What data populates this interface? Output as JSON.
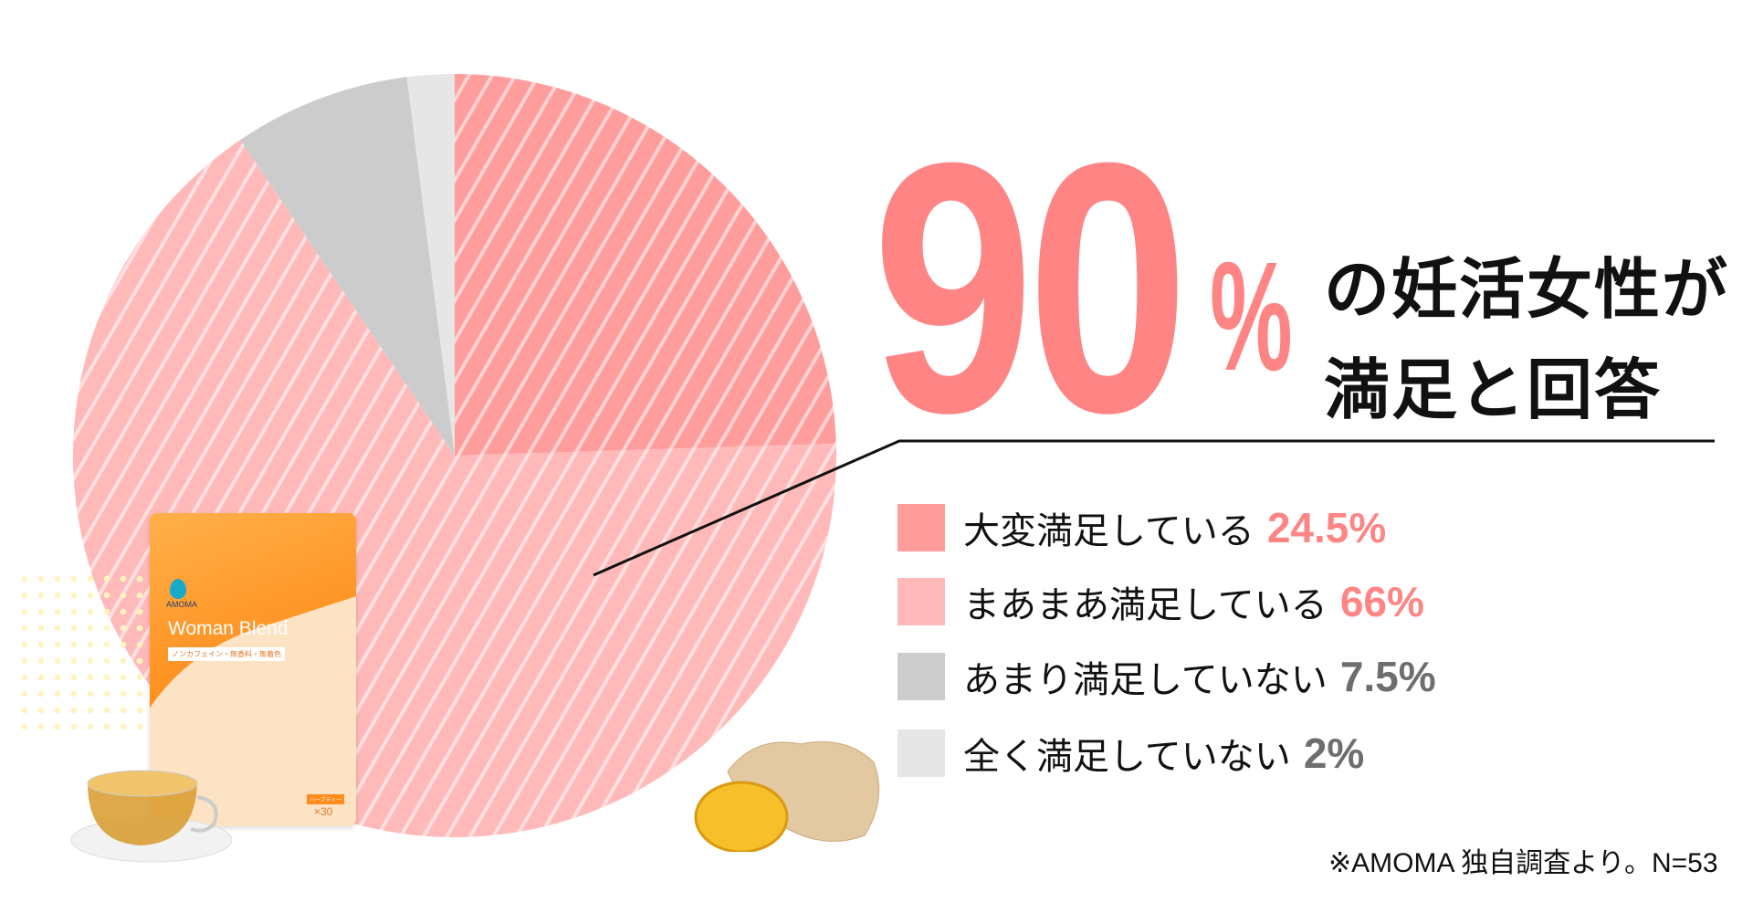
{
  "chart_data": {
    "type": "pie",
    "start": "12 o'clock",
    "direction": "clockwise",
    "slices": [
      {
        "label": "大変満足している",
        "value": 24.5,
        "value_label": "24.5%",
        "color": "#ff9c9c",
        "striped": true,
        "text_color": "#ff8585"
      },
      {
        "label": "まあまあ満足している",
        "value": 66,
        "value_label": "66%",
        "color": "#ffb9b9",
        "striped": true,
        "text_color": "#ff8585"
      },
      {
        "label": "あまり満足していない",
        "value": 7.5,
        "value_label": "7.5%",
        "color": "#cccccc",
        "striped": false,
        "text_color": "#6e6e6e"
      },
      {
        "label": "全く満足していない",
        "value": 2,
        "value_label": "2%",
        "color": "#e6e6e6",
        "striped": false,
        "text_color": "#6e6e6e"
      }
    ],
    "legend_placement": "right"
  },
  "headline": {
    "number": "90",
    "percent": "%",
    "line1": "の妊活女性が",
    "line2": "満足と回答",
    "accent": "#ff8585"
  },
  "footnote": "※AMOMA 独自調査より。N=53",
  "product": {
    "brand": "AMOMA",
    "name": "Woman Blend",
    "subtitle": "ノンカフェイン・無香料・無着色",
    "type_label": "ハーブティー",
    "count": "×30"
  }
}
